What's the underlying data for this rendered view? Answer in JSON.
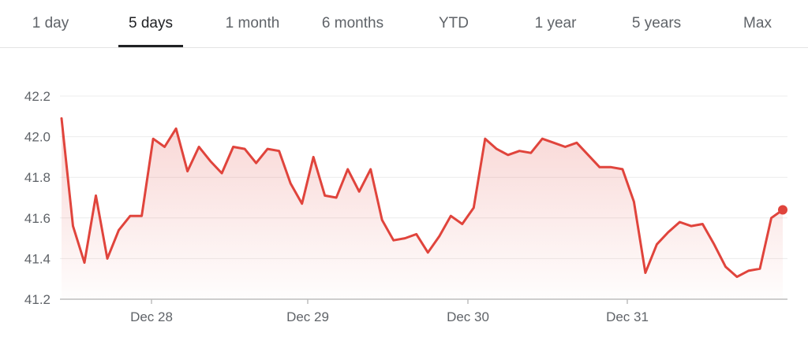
{
  "tabs": [
    {
      "label": "1 day",
      "active": false
    },
    {
      "label": "5 days",
      "active": true
    },
    {
      "label": "1 month",
      "active": false
    },
    {
      "label": "6 months",
      "active": false
    },
    {
      "label": "YTD",
      "active": false
    },
    {
      "label": "1 year",
      "active": false
    },
    {
      "label": "5 years",
      "active": false
    },
    {
      "label": "Max",
      "active": false
    }
  ],
  "colors": {
    "line": "#e0443c",
    "fill": "#e0443c",
    "grid": "#ececec",
    "axis": "#bdbdbd"
  },
  "chart_data": {
    "type": "line",
    "title": "",
    "xlabel": "",
    "ylabel": "",
    "ylim": [
      41.2,
      42.2
    ],
    "yticks": [
      "42.2",
      "42.0",
      "41.8",
      "41.6",
      "41.4",
      "41.2"
    ],
    "xticks": [
      "Dec 28",
      "Dec 29",
      "Dec 30",
      "Dec 31"
    ],
    "grid": true,
    "legend": "none",
    "series": [
      {
        "values": [
          42.09,
          41.56,
          41.38,
          41.71,
          41.4,
          41.54,
          41.61,
          41.61,
          41.99,
          41.95,
          42.04,
          41.83,
          41.95,
          41.88,
          41.82,
          41.95,
          41.94,
          41.87,
          41.94,
          41.93,
          41.77,
          41.67,
          41.9,
          41.71,
          41.7,
          41.84,
          41.73,
          41.84,
          41.59,
          41.49,
          41.5,
          41.52,
          41.43,
          41.51,
          41.61,
          41.57,
          41.65,
          41.99,
          41.94,
          41.91,
          41.93,
          41.92,
          41.99,
          41.97,
          41.95,
          41.97,
          41.91,
          41.85,
          41.85,
          41.84,
          41.68,
          41.33,
          41.47,
          41.53,
          41.58,
          41.56,
          41.57,
          41.47,
          41.36,
          41.31,
          41.34,
          41.35,
          41.6,
          41.64
        ]
      }
    ]
  }
}
